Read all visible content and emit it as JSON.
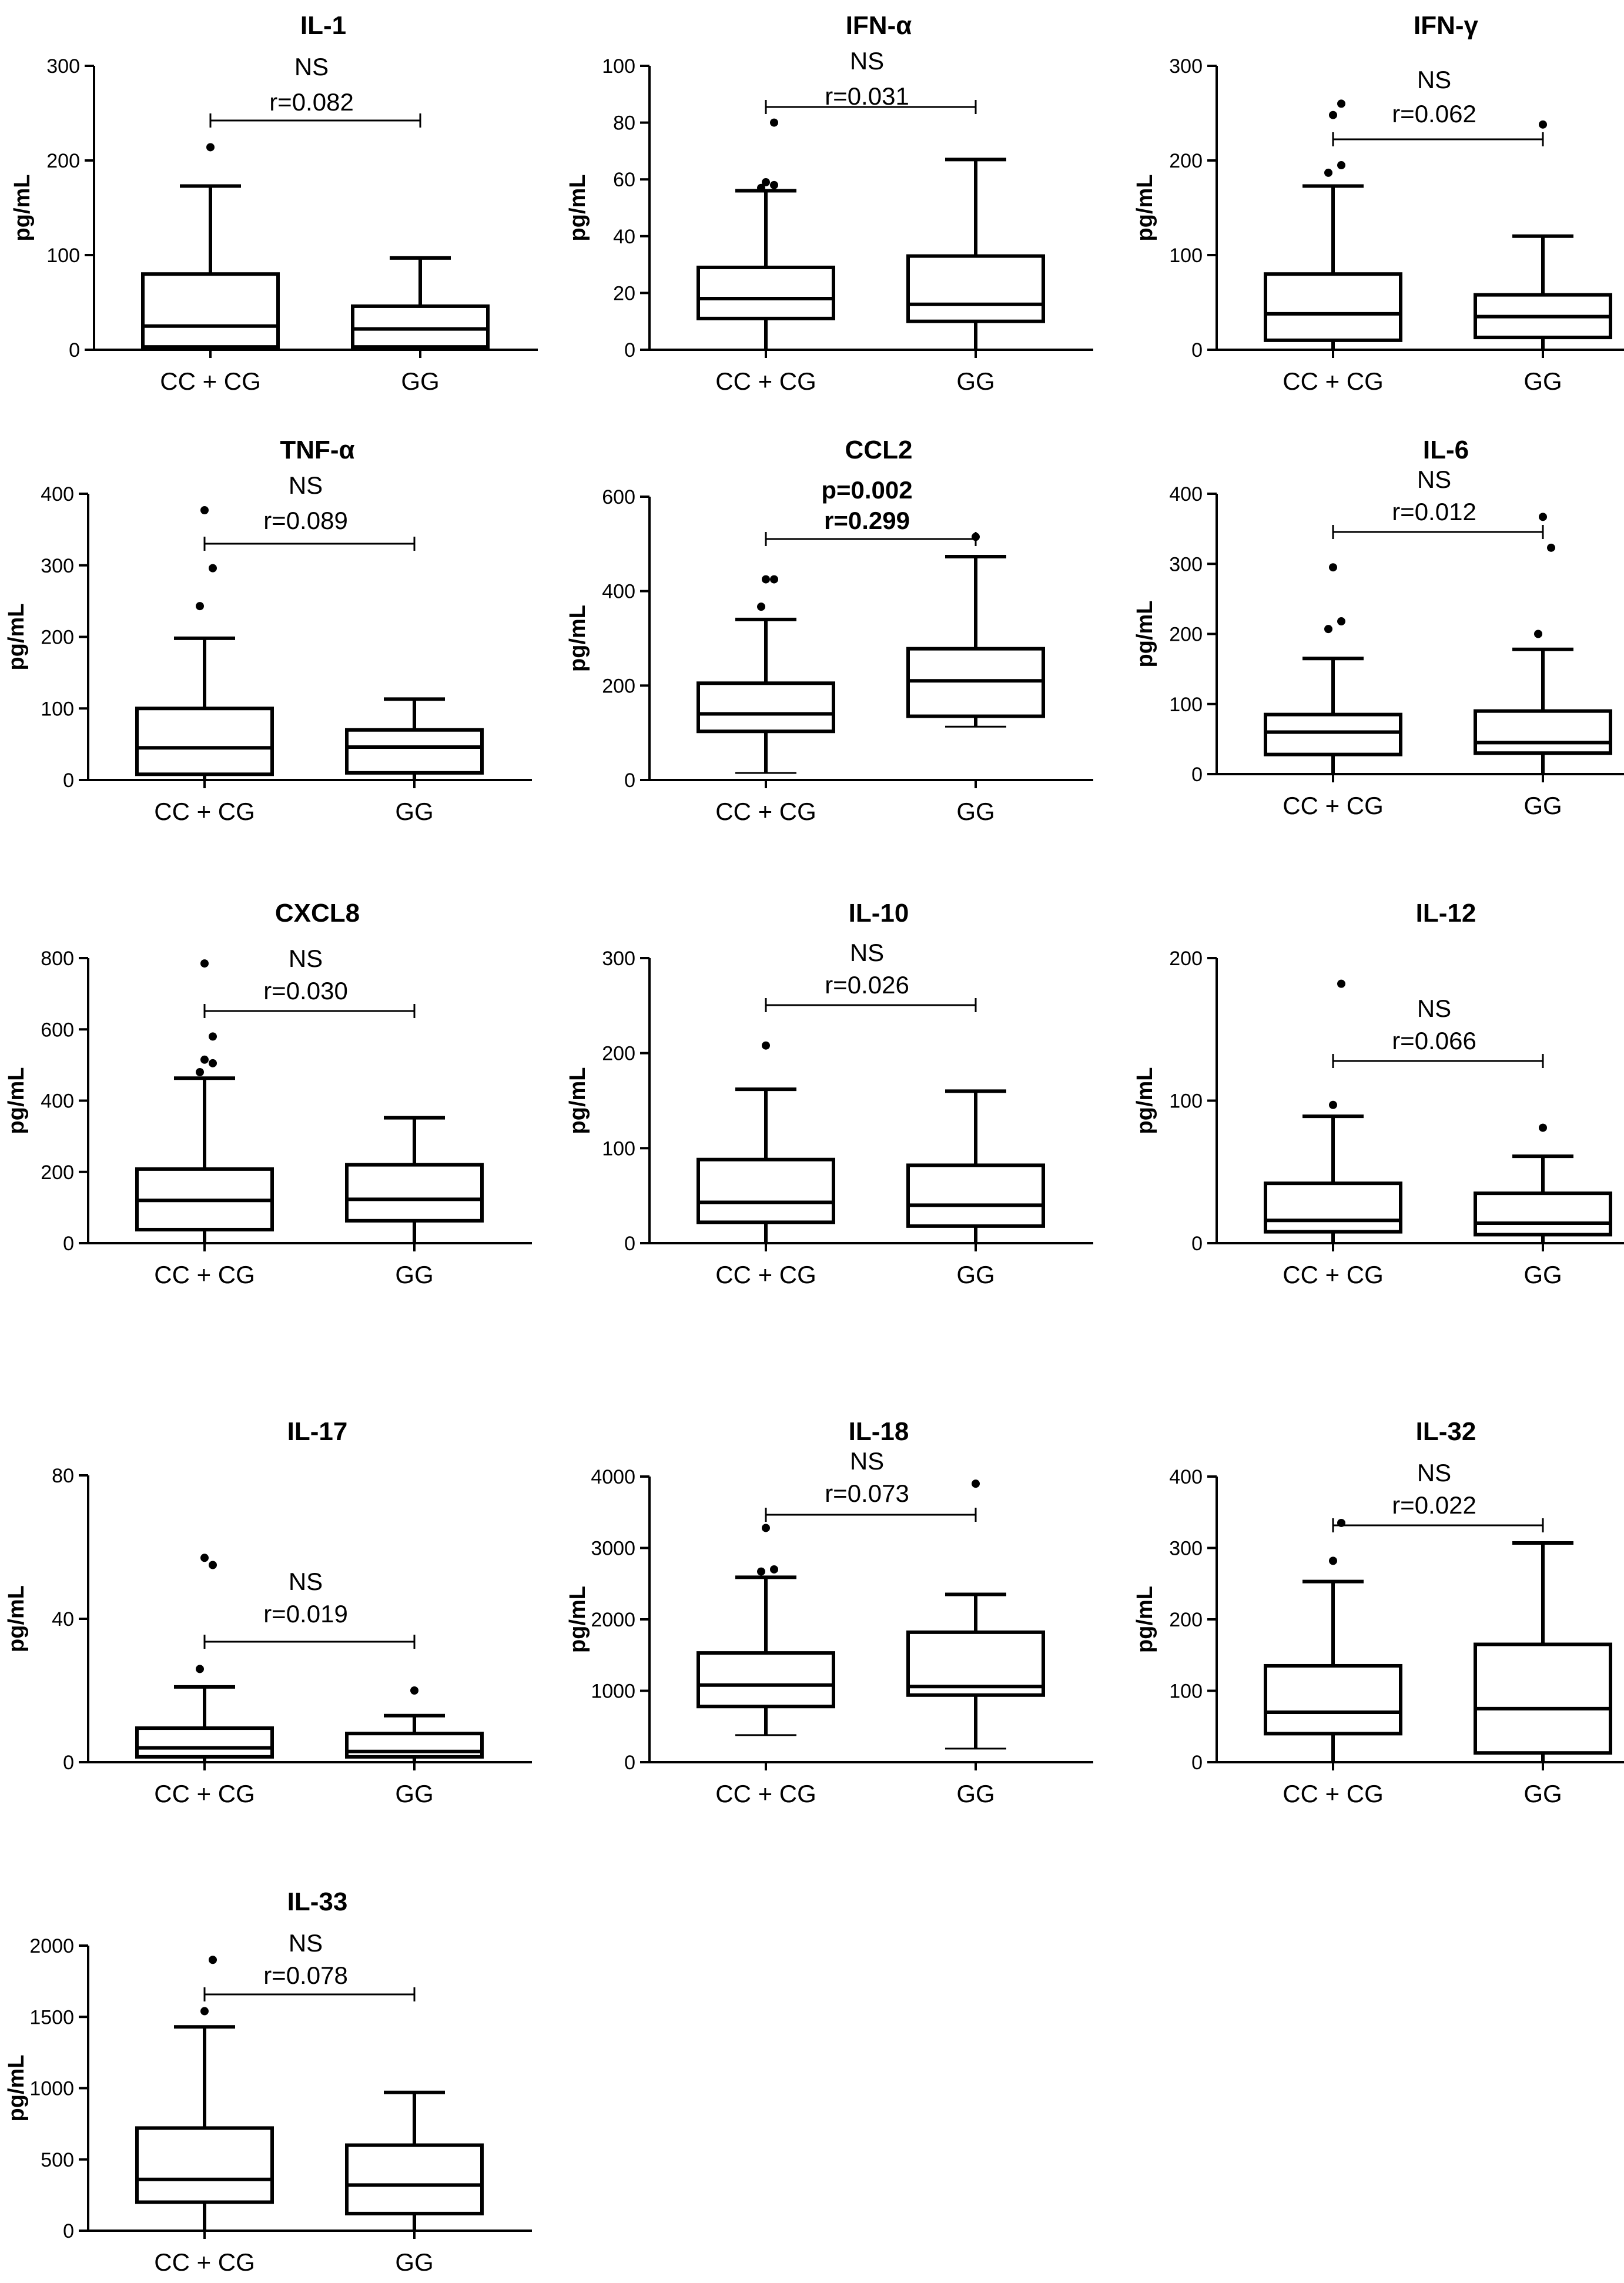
{
  "chart_data": [
    {
      "type": "box",
      "title": "IL-1",
      "ylabel": "pg/mL",
      "ylim": [
        0,
        300
      ],
      "yticks": [
        0,
        100,
        200,
        300
      ],
      "categories": [
        "CC + CG",
        "GG"
      ],
      "boxes": [
        {
          "whisker_low": 0,
          "q1": 3,
          "median": 25,
          "q3": 80,
          "whisker_high": 173,
          "outliers": [
            214
          ]
        },
        {
          "whisker_low": 0,
          "q1": 3,
          "median": 22,
          "q3": 46,
          "whisker_high": 97,
          "outliers": []
        }
      ],
      "annotation": {
        "lines": [
          "NS",
          "r=0.082"
        ],
        "bold": false
      }
    },
    {
      "type": "box",
      "title": "IFN-α",
      "ylabel": "pg/mL",
      "ylim": [
        0,
        100
      ],
      "yticks": [
        0,
        20,
        40,
        60,
        80,
        100
      ],
      "categories": [
        "CC + CG",
        "GG"
      ],
      "boxes": [
        {
          "whisker_low": 0,
          "q1": 11,
          "median": 18,
          "q3": 29,
          "whisker_high": 56,
          "outliers": [
            57,
            58,
            59,
            80
          ]
        },
        {
          "whisker_low": 0,
          "q1": 10,
          "median": 16,
          "q3": 33,
          "whisker_high": 67,
          "outliers": []
        }
      ],
      "annotation": {
        "lines": [
          "NS",
          "r=0.031"
        ],
        "bold": false
      }
    },
    {
      "type": "box",
      "title": "IFN-γ",
      "ylabel": "pg/mL",
      "ylim": [
        0,
        300
      ],
      "yticks": [
        0,
        100,
        200,
        300
      ],
      "categories": [
        "CC + CG",
        "GG"
      ],
      "boxes": [
        {
          "whisker_low": 0,
          "q1": 10,
          "median": 38,
          "q3": 80,
          "whisker_high": 173,
          "outliers": [
            187,
            195,
            248,
            260
          ]
        },
        {
          "whisker_low": 0,
          "q1": 13,
          "median": 35,
          "q3": 58,
          "whisker_high": 120,
          "outliers": [
            238
          ]
        }
      ],
      "annotation": {
        "lines": [
          "NS",
          "r=0.062"
        ],
        "bold": false
      }
    },
    {
      "type": "box",
      "title": "TNF-α",
      "ylabel": "pg/mL",
      "ylim": [
        0,
        400
      ],
      "yticks": [
        0,
        100,
        200,
        300,
        400
      ],
      "categories": [
        "CC + CG",
        "GG"
      ],
      "boxes": [
        {
          "whisker_low": 0,
          "q1": 8,
          "median": 45,
          "q3": 100,
          "whisker_high": 198,
          "outliers": [
            243,
            296,
            377
          ]
        },
        {
          "whisker_low": 0,
          "q1": 10,
          "median": 46,
          "q3": 70,
          "whisker_high": 113,
          "outliers": []
        }
      ],
      "annotation": {
        "lines": [
          "NS",
          "r=0.089"
        ],
        "bold": false
      }
    },
    {
      "type": "box",
      "title": "CCL2",
      "ylabel": "pg/mL",
      "ylim": [
        0,
        600
      ],
      "yticks": [
        0,
        200,
        400,
        600
      ],
      "categories": [
        "CC + CG",
        "GG"
      ],
      "boxes": [
        {
          "whisker_low": 15,
          "q1": 103,
          "median": 140,
          "q3": 205,
          "whisker_high": 340,
          "outliers": [
            367,
            425,
            425
          ]
        },
        {
          "whisker_low": 113,
          "q1": 135,
          "median": 210,
          "q3": 278,
          "whisker_high": 473,
          "outliers": [
            515
          ]
        }
      ],
      "annotation": {
        "lines": [
          "p=0.002",
          "r=0.299"
        ],
        "bold": true
      }
    },
    {
      "type": "box",
      "title": "IL-6",
      "ylabel": "pg/mL",
      "ylim": [
        0,
        400
      ],
      "yticks": [
        0,
        100,
        200,
        300,
        400
      ],
      "categories": [
        "CC + CG",
        "GG"
      ],
      "boxes": [
        {
          "whisker_low": 0,
          "q1": 28,
          "median": 60,
          "q3": 85,
          "whisker_high": 165,
          "outliers": [
            207,
            218,
            295
          ]
        },
        {
          "whisker_low": 0,
          "q1": 30,
          "median": 45,
          "q3": 90,
          "whisker_high": 178,
          "outliers": [
            200,
            323,
            367
          ]
        }
      ],
      "annotation": {
        "lines": [
          "NS",
          "r=0.012"
        ],
        "bold": false
      }
    },
    {
      "type": "box",
      "title": "CXCL8",
      "ylabel": "pg/mL",
      "ylim": [
        0,
        800
      ],
      "yticks": [
        0,
        200,
        400,
        600,
        800
      ],
      "categories": [
        "CC + CG",
        "GG"
      ],
      "boxes": [
        {
          "whisker_low": 0,
          "q1": 38,
          "median": 120,
          "q3": 208,
          "whisker_high": 463,
          "outliers": [
            480,
            505,
            515,
            580,
            785
          ]
        },
        {
          "whisker_low": 0,
          "q1": 63,
          "median": 123,
          "q3": 220,
          "whisker_high": 352,
          "outliers": []
        }
      ],
      "annotation": {
        "lines": [
          "NS",
          "r=0.030"
        ],
        "bold": false
      }
    },
    {
      "type": "box",
      "title": "IL-10",
      "ylabel": "pg/mL",
      "ylim": [
        0,
        300
      ],
      "yticks": [
        0,
        100,
        200,
        300
      ],
      "categories": [
        "CC + CG",
        "GG"
      ],
      "boxes": [
        {
          "whisker_low": 0,
          "q1": 22,
          "median": 43,
          "q3": 88,
          "whisker_high": 162,
          "outliers": [
            208
          ]
        },
        {
          "whisker_low": 0,
          "q1": 18,
          "median": 40,
          "q3": 82,
          "whisker_high": 160,
          "outliers": []
        }
      ],
      "annotation": {
        "lines": [
          "NS",
          "r=0.026"
        ],
        "bold": false
      }
    },
    {
      "type": "box",
      "title": "IL-12",
      "ylabel": "pg/mL",
      "ylim": [
        0,
        200
      ],
      "yticks": [
        0,
        100,
        200
      ],
      "categories": [
        "CC + CG",
        "GG"
      ],
      "boxes": [
        {
          "whisker_low": 0,
          "q1": 8,
          "median": 16,
          "q3": 42,
          "whisker_high": 89,
          "outliers": [
            97,
            182
          ]
        },
        {
          "whisker_low": 0,
          "q1": 6,
          "median": 14,
          "q3": 35,
          "whisker_high": 61,
          "outliers": [
            81
          ]
        }
      ],
      "annotation": {
        "lines": [
          "NS",
          "r=0.066"
        ],
        "bold": false
      }
    },
    {
      "type": "box",
      "title": "IL-17",
      "ylabel": "pg/mL",
      "ylim": [
        0,
        80
      ],
      "yticks": [
        0,
        40,
        80
      ],
      "categories": [
        "CC + CG",
        "GG"
      ],
      "boxes": [
        {
          "whisker_low": 0,
          "q1": 1.5,
          "median": 4,
          "q3": 9.5,
          "whisker_high": 21,
          "outliers": [
            26,
            55,
            57
          ]
        },
        {
          "whisker_low": 0,
          "q1": 1.5,
          "median": 3,
          "q3": 8,
          "whisker_high": 13,
          "outliers": [
            20
          ]
        }
      ],
      "annotation": {
        "lines": [
          "NS",
          "r=0.019"
        ],
        "bold": false
      }
    },
    {
      "type": "box",
      "title": "IL-18",
      "ylabel": "pg/mL",
      "ylim": [
        0,
        4000
      ],
      "yticks": [
        0,
        1000,
        2000,
        3000,
        4000
      ],
      "categories": [
        "CC + CG",
        "GG"
      ],
      "boxes": [
        {
          "whisker_low": 380,
          "q1": 780,
          "median": 1080,
          "q3": 1530,
          "whisker_high": 2590,
          "outliers": [
            2670,
            2700,
            3280
          ]
        },
        {
          "whisker_low": 190,
          "q1": 940,
          "median": 1060,
          "q3": 1820,
          "whisker_high": 2350,
          "outliers": [
            3900
          ]
        }
      ],
      "annotation": {
        "lines": [
          "NS",
          "r=0.073"
        ],
        "bold": false
      }
    },
    {
      "type": "box",
      "title": "IL-32",
      "ylabel": "pg/mL",
      "ylim": [
        0,
        400
      ],
      "yticks": [
        0,
        100,
        200,
        300,
        400
      ],
      "categories": [
        "CC + CG",
        "GG"
      ],
      "boxes": [
        {
          "whisker_low": 0,
          "q1": 40,
          "median": 70,
          "q3": 135,
          "whisker_high": 253,
          "outliers": [
            282,
            335
          ]
        },
        {
          "whisker_low": 0,
          "q1": 13,
          "median": 75,
          "q3": 165,
          "whisker_high": 307,
          "outliers": []
        }
      ],
      "annotation": {
        "lines": [
          "NS",
          "r=0.022"
        ],
        "bold": false
      }
    },
    {
      "type": "box",
      "title": "IL-33",
      "ylabel": "pg/mL",
      "ylim": [
        0,
        2000
      ],
      "yticks": [
        0,
        500,
        1000,
        1500,
        2000
      ],
      "categories": [
        "CC + CG",
        "GG"
      ],
      "boxes": [
        {
          "whisker_low": 0,
          "q1": 200,
          "median": 360,
          "q3": 720,
          "whisker_high": 1430,
          "outliers": [
            1540,
            1900
          ]
        },
        {
          "whisker_low": 0,
          "q1": 120,
          "median": 320,
          "q3": 600,
          "whisker_high": 970,
          "outliers": []
        }
      ],
      "annotation": {
        "lines": [
          "NS",
          "r=0.078"
        ],
        "bold": false
      }
    }
  ]
}
